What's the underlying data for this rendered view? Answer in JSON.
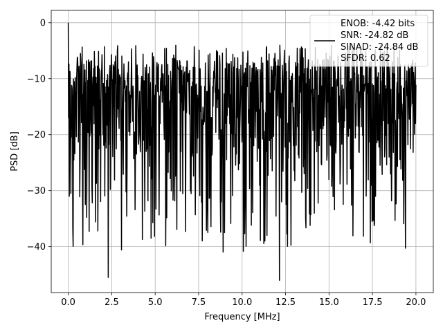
{
  "chart_data": {
    "type": "line",
    "title": "",
    "xlabel": "Frequency [MHz]",
    "ylabel": "PSD [dB]",
    "xlim": [
      -0.98,
      21.0
    ],
    "ylim": [
      -48.2,
      2.2
    ],
    "xticks": [
      0.0,
      2.5,
      5.0,
      7.5,
      10.0,
      12.5,
      15.0,
      17.5,
      20.0
    ],
    "xtick_labels": [
      "0.0",
      "2.5",
      "5.0",
      "7.5",
      "10.0",
      "12.5",
      "15.0",
      "17.5",
      "20.0"
    ],
    "yticks": [
      0,
      -10,
      -20,
      -30,
      -40
    ],
    "ytick_labels": [
      "0",
      "−10",
      "−20",
      "−30",
      "−40"
    ],
    "grid": true,
    "legend_position": "top-right",
    "line_color": "#000000",
    "legend_entries": [
      "ENOB: -4.42 bits",
      "SNR: -24.82 dB",
      "SINAD: -24.84 dB",
      "SFDR: 0.62"
    ],
    "series": [
      {
        "x_start": 0.0,
        "x_end": 20.0,
        "points": 1000,
        "noise_floor_db": -17,
        "peak_db": -4,
        "trough_db": -46,
        "x": [
          0.0,
          0.02,
          0.06,
          0.1,
          0.15,
          0.2,
          0.24,
          2.3,
          12.15
        ],
        "y": [
          0.0,
          -17.0,
          -31.0,
          -8.7,
          -30.5,
          -11.2,
          -13.5,
          -45.5,
          -46.0
        ]
      }
    ]
  }
}
